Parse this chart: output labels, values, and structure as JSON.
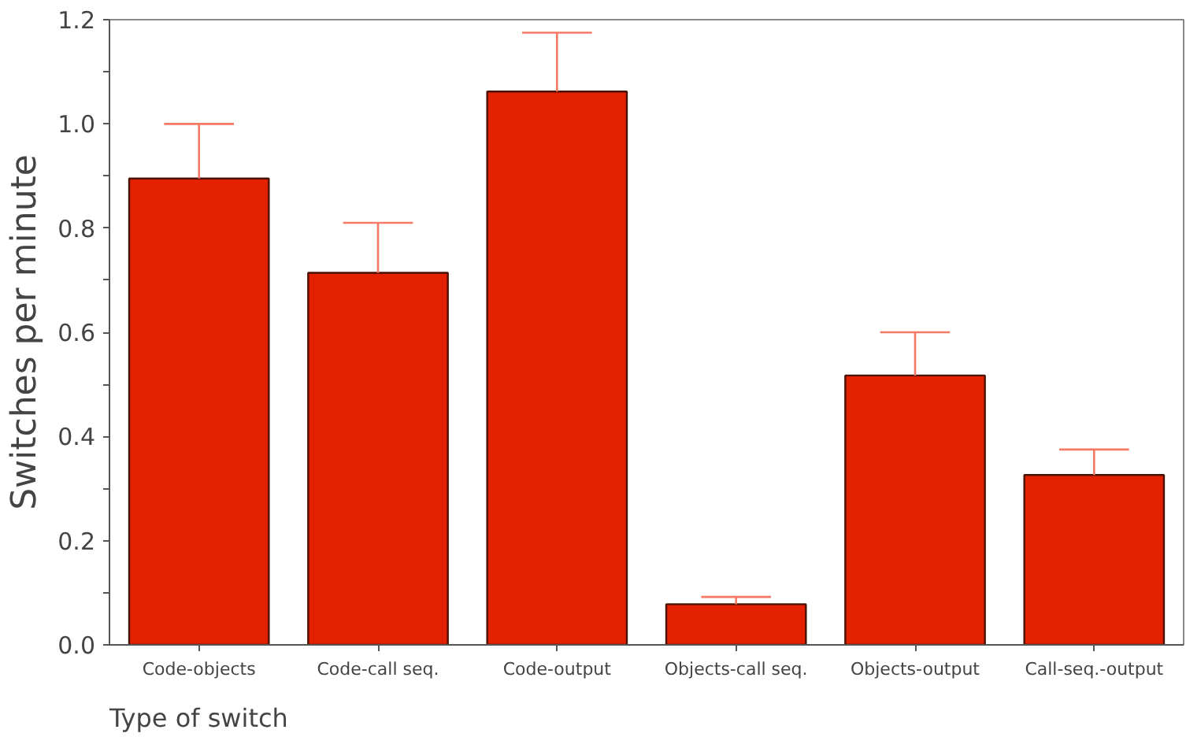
{
  "chart_data": {
    "type": "bar",
    "xlabel": "Type of switch",
    "ylabel": "Switches per minute",
    "categories": [
      "Code-objects",
      "Code-call seq.",
      "Code-output",
      "Objects-call seq.",
      "Objects-output",
      "Call-seq.-output"
    ],
    "series": [
      {
        "color": "#e32000",
        "values": [
          0.895,
          0.714,
          1.062,
          0.078,
          0.517,
          0.326
        ],
        "errors": [
          [
            0.895,
            1.0
          ],
          [
            0.714,
            0.81
          ],
          [
            1.062,
            1.175
          ],
          [
            0.078,
            0.092
          ],
          [
            0.517,
            0.6
          ],
          [
            0.326,
            0.375
          ]
        ]
      }
    ],
    "ylim": [
      0,
      1.2
    ],
    "yticks": [
      "0.0",
      {
        "value": 0.1,
        "label": null
      },
      {
        "value": 0.2,
        "label": "0.2"
      },
      {
        "value": 0.3,
        "label": null
      },
      {
        "value": 0.4,
        "label": "0.4"
      },
      {
        "value": 0.5,
        "label": null
      },
      {
        "value": 0.6,
        "label": "0.6"
      },
      {
        "value": 0.7,
        "label": null
      },
      {
        "value": 0.8,
        "label": "0.8"
      },
      {
        "value": 0.9,
        "label": null
      },
      {
        "value": 1.0,
        "label": "1.0"
      },
      {
        "value": 1.1,
        "label": null
      },
      {
        "value": 1.2,
        "label": "1.2"
      }
    ],
    "grid": false
  }
}
